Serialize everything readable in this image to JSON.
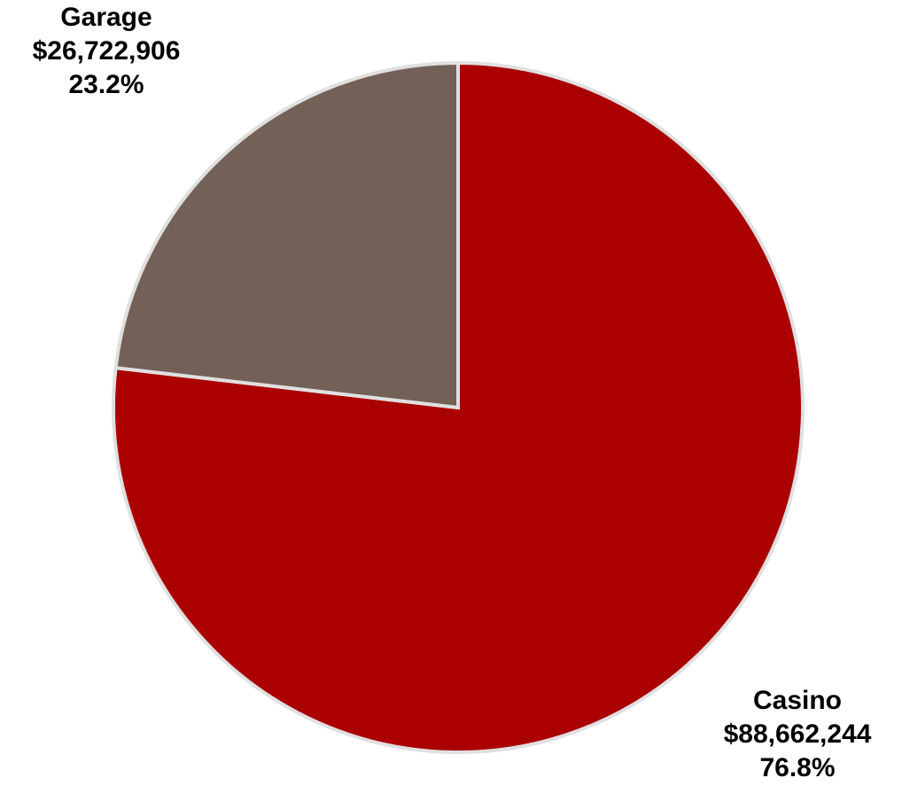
{
  "chart_data": {
    "type": "pie",
    "slices": [
      {
        "label": "Casino",
        "value_text": "$88,662,244",
        "percent_text": "76.8%",
        "value": 88662244,
        "percent": 76.8,
        "color": "#AA0000"
      },
      {
        "label": "Garage",
        "value_text": "$26,722,906",
        "percent_text": "23.2%",
        "value": 26722906,
        "percent": 23.2,
        "color": "#736157"
      }
    ],
    "start_angle": "12 o'clock",
    "direction": "clockwise",
    "separator_color": "#E0E0E0"
  }
}
